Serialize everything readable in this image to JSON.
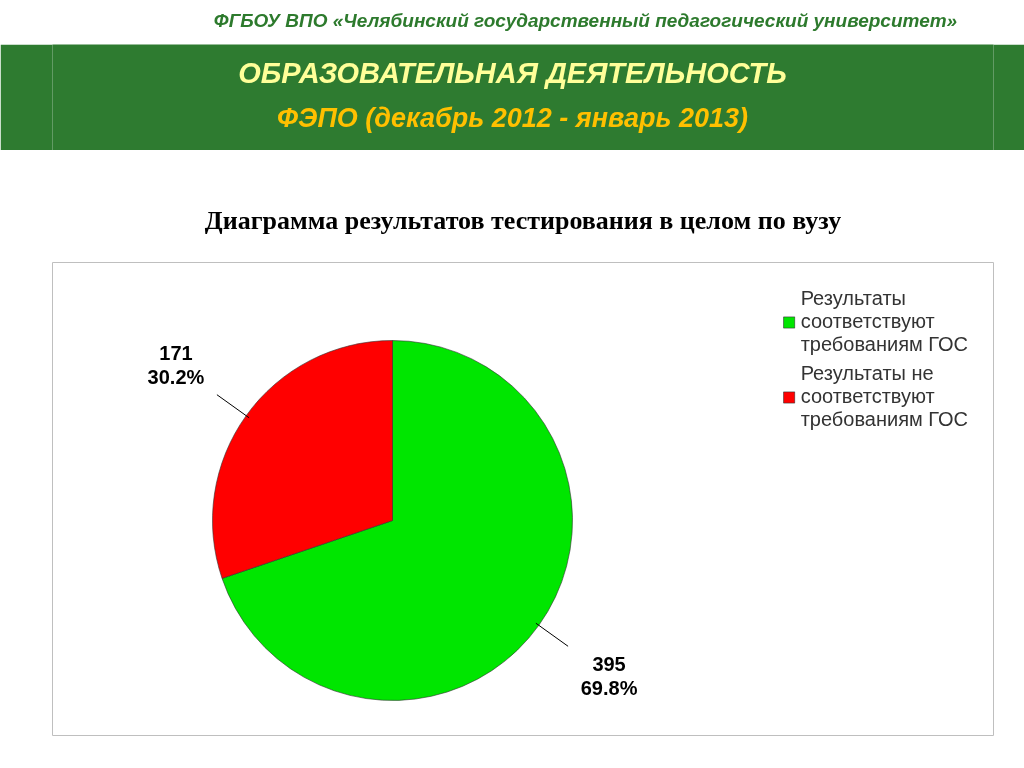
{
  "chart_data": {
    "type": "pie",
    "title": "Диаграмма результатов тестирования в целом по вузу",
    "annotations": [
      "ФГБОУ ВПО «Челябинский государственный педагогический университет»",
      "ОБРАЗОВАТЕЛЬНАЯ ДЕЯТЕЛЬНОСТЬ",
      "ФЭПО (декабрь 2012 - январь 2013)"
    ],
    "categories": [
      "Результаты соответствуют требованиям ГОС",
      "Результаты не соответствуют требованиям ГОС"
    ],
    "values": [
      395,
      171
    ],
    "colors": [
      "#00e600",
      "#ff0000"
    ],
    "value_labels": [
      "395\n69.8%",
      "171\n30.2%"
    ],
    "legend": "top right"
  }
}
